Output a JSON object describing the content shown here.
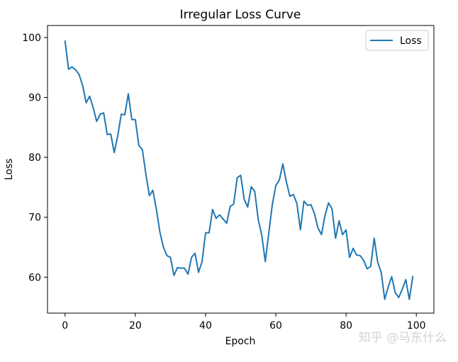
{
  "chart_data": {
    "type": "line",
    "title": "Irregular Loss Curve",
    "xlabel": "Epoch",
    "ylabel": "Loss",
    "xlim": [
      -5,
      105
    ],
    "ylim": [
      54,
      102
    ],
    "xticks": [
      0,
      20,
      40,
      60,
      80,
      100
    ],
    "yticks": [
      60,
      70,
      80,
      90,
      100
    ],
    "grid": false,
    "legend_position": "top-right",
    "series": [
      {
        "name": "Loss",
        "color": "#1f77b4",
        "x": [
          0,
          1,
          2,
          3,
          4,
          5,
          6,
          7,
          8,
          9,
          10,
          11,
          12,
          13,
          14,
          15,
          16,
          17,
          18,
          19,
          20,
          21,
          22,
          23,
          24,
          25,
          26,
          27,
          28,
          29,
          30,
          31,
          32,
          33,
          34,
          35,
          36,
          37,
          38,
          39,
          40,
          41,
          42,
          43,
          44,
          45,
          46,
          47,
          48,
          49,
          50,
          51,
          52,
          53,
          54,
          55,
          56,
          57,
          58,
          59,
          60,
          61,
          62,
          63,
          64,
          65,
          66,
          67,
          68,
          69,
          70,
          71,
          72,
          73,
          74,
          75,
          76,
          77,
          78,
          79,
          80,
          81,
          82,
          83,
          84,
          85,
          86,
          87,
          88,
          89,
          90,
          91,
          92,
          93,
          94,
          95,
          96,
          97,
          98,
          99
        ],
        "values": [
          99.4,
          94.7,
          95.1,
          94.6,
          93.8,
          92.0,
          89.1,
          90.2,
          88.3,
          86.0,
          87.2,
          87.4,
          83.8,
          83.9,
          80.8,
          83.6,
          87.2,
          87.1,
          90.6,
          86.3,
          86.3,
          82.0,
          81.3,
          77.2,
          73.6,
          74.5,
          71.3,
          67.5,
          65.0,
          63.6,
          63.3,
          60.3,
          61.6,
          61.5,
          61.5,
          60.5,
          63.3,
          64.0,
          60.8,
          62.6,
          67.4,
          67.4,
          71.3,
          69.8,
          70.4,
          69.7,
          69.0,
          71.8,
          72.2,
          76.6,
          77.0,
          73.0,
          71.7,
          75.1,
          74.3,
          69.6,
          67.0,
          62.6,
          67.4,
          72.1,
          75.3,
          76.2,
          78.9,
          75.9,
          73.5,
          73.8,
          72.3,
          67.9,
          72.7,
          72.0,
          72.1,
          70.6,
          68.2,
          67.1,
          70.3,
          72.4,
          71.4,
          66.5,
          69.4,
          67.1,
          67.9,
          63.3,
          64.8,
          63.7,
          63.6,
          62.8,
          61.4,
          61.8,
          66.5,
          62.5,
          60.8,
          56.3,
          58.4,
          60.1,
          57.4,
          56.6,
          58.0,
          59.6,
          56.3,
          60.1
        ]
      }
    ]
  },
  "watermark": "知乎 @马东什么"
}
